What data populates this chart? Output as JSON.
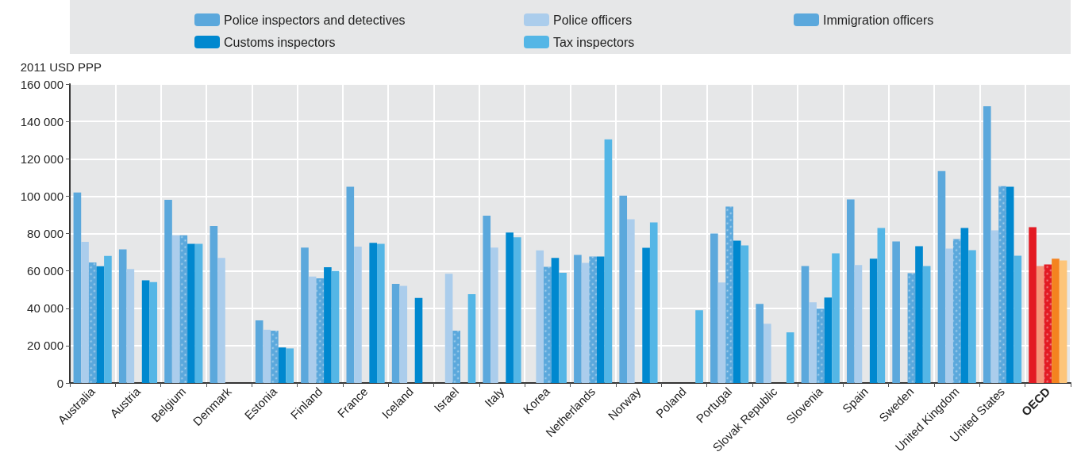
{
  "chart_data": {
    "type": "bar",
    "ylabel": "2011 USD PPP",
    "categories": [
      "Australia",
      "Austria",
      "Belgium",
      "Denmark",
      "Estonia",
      "Finland",
      "France",
      "Iceland",
      "Israel",
      "Italy",
      "Korea",
      "Netherlands",
      "Norway",
      "Poland",
      "Portugal",
      "Slovak Republic",
      "Slovenia",
      "Spain",
      "Sweden",
      "United Kingdom",
      "United States",
      "OECD"
    ],
    "series": [
      {
        "name": "Police inspectors and detectives",
        "color": "#5ba8dc",
        "colors": [
          "#5ba8dc",
          "#5ba8dc",
          "#5ba8dc",
          "#5ba8dc",
          "#5ba8dc",
          "#5ba8dc",
          "#5ba8dc",
          "#5ba8dc",
          "#5ba8dc",
          "#5ba8dc",
          "#5ba8dc",
          "#5ba8dc",
          "#5ba8dc",
          "#5ba8dc",
          "#5ba8dc",
          "#5ba8dc",
          "#5ba8dc",
          "#5ba8dc",
          "#5ba8dc",
          "#5ba8dc",
          "#5ba8dc",
          "#e31a23"
        ],
        "values": [
          102000,
          71500,
          98000,
          84000,
          33500,
          72500,
          105000,
          53000,
          null,
          89500,
          null,
          68500,
          100300,
          null,
          80000,
          42300,
          62600,
          98200,
          75800,
          113400,
          148100,
          83400
        ]
      },
      {
        "name": "Police officers",
        "color": "#abcdec",
        "colors": [
          "#abcdec",
          "#abcdec",
          "#abcdec",
          "#abcdec",
          "#abcdec",
          "#abcdec",
          "#abcdec",
          "#abcdec",
          "#abcdec",
          "#abcdec",
          "#abcdec",
          "#abcdec",
          "#abcdec",
          "#abcdec",
          "#abcdec",
          "#abcdec",
          "#abcdec",
          "#abcdec",
          "#abcdec",
          "#abcdec",
          "#abcdec",
          "#f6957a"
        ],
        "values": [
          75500,
          61000,
          79000,
          67000,
          28500,
          57000,
          73000,
          52000,
          58500,
          72500,
          71000,
          64300,
          87600,
          null,
          53800,
          31700,
          43200,
          63100,
          null,
          71900,
          81700,
          62600
        ]
      },
      {
        "name": "Immigration officers",
        "color": "#5ba8dc",
        "colors": [
          "#5ba8dc",
          "#5ba8dc",
          "#5ba8dc",
          "#5ba8dc",
          "#5ba8dc",
          "#5ba8dc",
          "#5ba8dc",
          "#5ba8dc",
          "#5ba8dc",
          "#5ba8dc",
          "#5ba8dc",
          "#5ba8dc",
          "#5ba8dc",
          "#5ba8dc",
          "#5ba8dc",
          "#5ba8dc",
          "#5ba8dc",
          "#5ba8dc",
          "#5ba8dc",
          "#5ba8dc",
          "#5ba8dc",
          "#e31a23"
        ],
        "values": [
          64500,
          null,
          79000,
          null,
          28000,
          56000,
          null,
          null,
          28000,
          null,
          62200,
          67700,
          null,
          null,
          94400,
          null,
          39800,
          null,
          58800,
          77000,
          105400,
          63500
        ]
      },
      {
        "name": "Customs inspectors",
        "color": "#0088cf",
        "colors": [
          "#0088cf",
          "#0088cf",
          "#0088cf",
          "#0088cf",
          "#0088cf",
          "#0088cf",
          "#0088cf",
          "#0088cf",
          "#0088cf",
          "#0088cf",
          "#0088cf",
          "#0088cf",
          "#0088cf",
          "#0088cf",
          "#0088cf",
          "#0088cf",
          "#0088cf",
          "#0088cf",
          "#0088cf",
          "#0088cf",
          "#0088cf",
          "#f4831f"
        ],
        "values": [
          62500,
          55000,
          74500,
          null,
          19000,
          62000,
          75000,
          45500,
          null,
          80500,
          67000,
          67700,
          72400,
          null,
          76200,
          null,
          45700,
          66500,
          73200,
          83000,
          105000,
          66500
        ]
      },
      {
        "name": "Tax inspectors",
        "color": "#54b6e6",
        "colors": [
          "#54b6e6",
          "#54b6e6",
          "#54b6e6",
          "#54b6e6",
          "#54b6e6",
          "#54b6e6",
          "#54b6e6",
          "#54b6e6",
          "#54b6e6",
          "#54b6e6",
          "#54b6e6",
          "#54b6e6",
          "#54b6e6",
          "#54b6e6",
          "#54b6e6",
          "#54b6e6",
          "#54b6e6",
          "#54b6e6",
          "#54b6e6",
          "#54b6e6",
          "#54b6e6",
          "#fdc57a"
        ],
        "values": [
          68000,
          54000,
          74500,
          null,
          18500,
          60000,
          74500,
          null,
          47500,
          78000,
          59000,
          130400,
          85900,
          38900,
          73600,
          27100,
          69400,
          83000,
          62600,
          71100,
          68100,
          65600
        ]
      }
    ],
    "ylim": [
      0,
      160000
    ],
    "yticks": [
      0,
      {
        "value": 20000,
        "label": "20 000"
      },
      {
        "value": 40000,
        "label": "40 000"
      },
      {
        "value": 60000,
        "label": "60 000"
      },
      {
        "value": 80000,
        "label": "80 000"
      },
      {
        "value": 100000,
        "label": "100 000"
      },
      {
        "value": 120000,
        "label": "120 000"
      },
      {
        "value": 140000,
        "label": "140 000"
      },
      {
        "value": 160000,
        "label": "160 000"
      }
    ],
    "grid": true,
    "legend": "top"
  }
}
